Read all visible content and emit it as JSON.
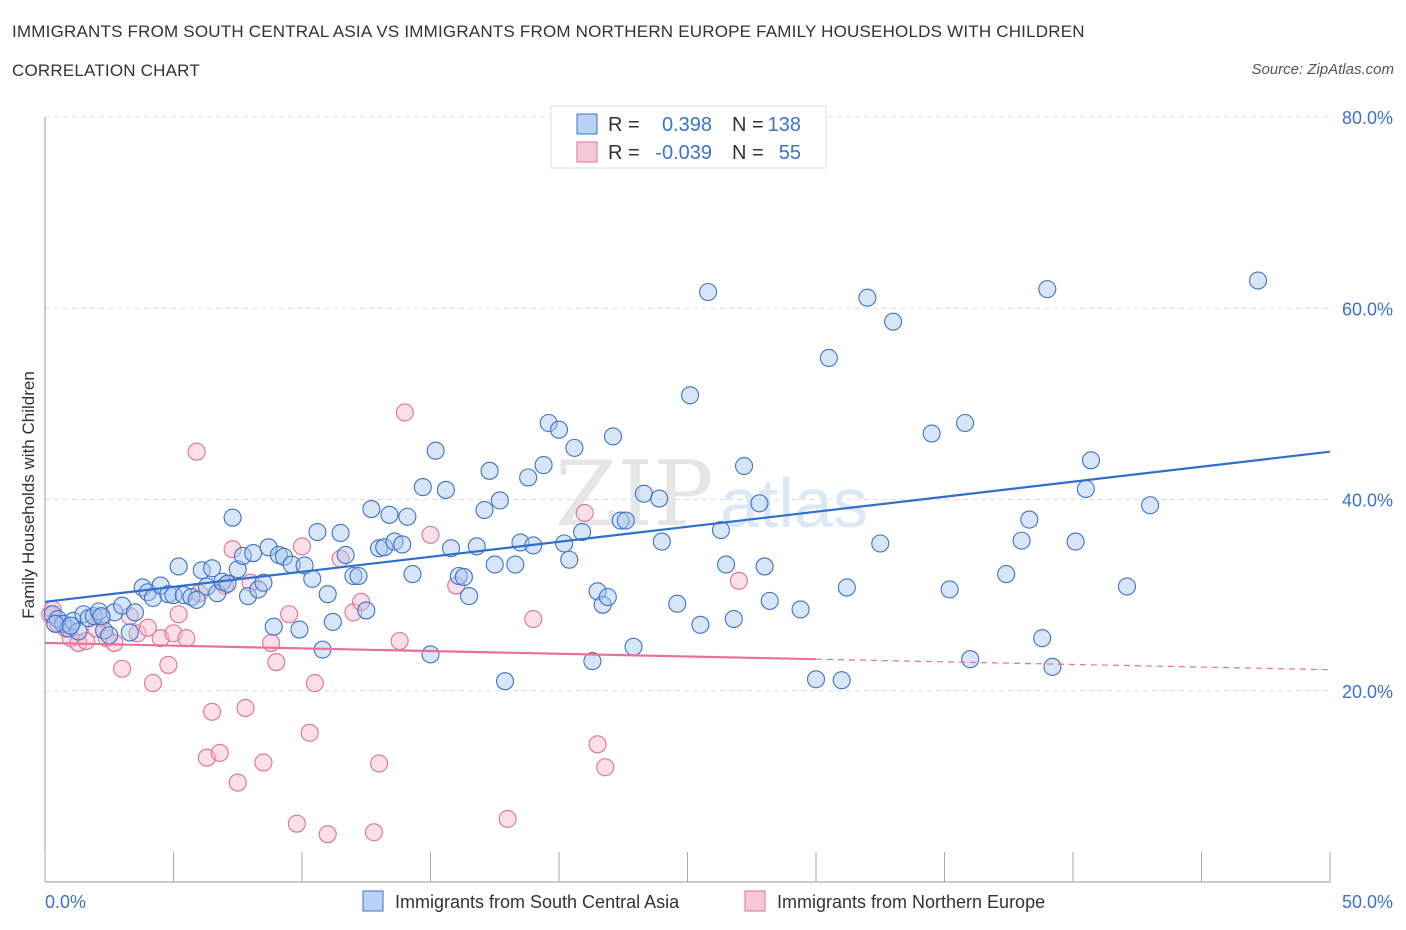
{
  "title": "IMMIGRANTS FROM SOUTH CENTRAL ASIA VS IMMIGRANTS FROM NORTHERN EUROPE FAMILY HOUSEHOLDS WITH CHILDREN",
  "subtitle": "CORRELATION CHART",
  "source": "Source: ZipAtlas.com",
  "watermark": {
    "zip": "ZIP",
    "atlas": "atlas"
  },
  "colors": {
    "blue": "#3b73c8",
    "blue_fill": "#a9c6ee",
    "blue_line": "#2f6fd0",
    "pink": "#e0709a",
    "pink_fill": "#f4b9cc",
    "pink_line": "#e8709a",
    "grid": "#dddddd",
    "axis_text": "#3b73c8"
  },
  "legend": {
    "rows": [
      {
        "r_label": "R =",
        "r_value": "0.398",
        "n_label": "N =",
        "n_value": "138",
        "series": "blue"
      },
      {
        "r_label": "R =",
        "r_value": "-0.039",
        "n_label": "N =",
        "n_value": "55",
        "series": "pink"
      }
    ]
  },
  "chart_data": {
    "type": "scatter",
    "title": "IMMIGRANTS FROM SOUTH CENTRAL ASIA VS IMMIGRANTS FROM NORTHERN EUROPE FAMILY HOUSEHOLDS WITH CHILDREN",
    "subtitle": "CORRELATION CHART",
    "xlabel": "",
    "ylabel": "Family Households with Children",
    "xlim": [
      0,
      50
    ],
    "ylim": [
      0,
      80
    ],
    "x_tick_labels": [
      "0.0%",
      "50.0%"
    ],
    "y_ticks": [
      20,
      40,
      60,
      80
    ],
    "y_tick_labels": [
      "20.0%",
      "40.0%",
      "60.0%",
      "80.0%"
    ],
    "grid": true,
    "legend_position": "top-center and bottom",
    "series": [
      {
        "name": "Immigrants from South Central Asia",
        "color": "blue",
        "trend": {
          "x": [
            0,
            50
          ],
          "y": [
            29.3,
            45.0
          ]
        },
        "points": [
          [
            0.3,
            28.0
          ],
          [
            0.5,
            27.5
          ],
          [
            0.7,
            27.0
          ],
          [
            0.9,
            26.5
          ],
          [
            1.1,
            27.3
          ],
          [
            1.3,
            26.2
          ],
          [
            1.5,
            28.0
          ],
          [
            1.7,
            27.6
          ],
          [
            1.9,
            27.8
          ],
          [
            2.1,
            28.3
          ],
          [
            2.3,
            26.3
          ],
          [
            2.5,
            25.8
          ],
          [
            2.7,
            28.2
          ],
          [
            3.0,
            28.9
          ],
          [
            3.3,
            26.1
          ],
          [
            3.5,
            28.2
          ],
          [
            3.8,
            30.8
          ],
          [
            4.0,
            30.3
          ],
          [
            4.2,
            29.7
          ],
          [
            4.5,
            31.0
          ],
          [
            4.8,
            30.1
          ],
          [
            5.0,
            30.0
          ],
          [
            5.2,
            33.0
          ],
          [
            5.4,
            30.0
          ],
          [
            5.7,
            29.8
          ],
          [
            5.9,
            29.5
          ],
          [
            6.1,
            32.6
          ],
          [
            6.3,
            30.9
          ],
          [
            6.5,
            32.8
          ],
          [
            6.7,
            30.2
          ],
          [
            6.9,
            31.4
          ],
          [
            7.1,
            31.2
          ],
          [
            7.3,
            38.1
          ],
          [
            7.5,
            32.7
          ],
          [
            7.7,
            34.1
          ],
          [
            7.9,
            29.9
          ],
          [
            8.1,
            34.4
          ],
          [
            8.3,
            30.6
          ],
          [
            8.5,
            31.3
          ],
          [
            8.7,
            35.0
          ],
          [
            8.9,
            26.7
          ],
          [
            9.1,
            34.2
          ],
          [
            9.3,
            34.0
          ],
          [
            9.6,
            33.2
          ],
          [
            9.9,
            26.4
          ],
          [
            10.1,
            33.1
          ],
          [
            10.4,
            31.7
          ],
          [
            10.6,
            36.6
          ],
          [
            10.8,
            24.3
          ],
          [
            11.0,
            30.1
          ],
          [
            11.2,
            27.2
          ],
          [
            11.5,
            36.5
          ],
          [
            11.7,
            34.2
          ],
          [
            12.0,
            32.0
          ],
          [
            12.2,
            32.0
          ],
          [
            12.5,
            28.4
          ],
          [
            12.7,
            39.0
          ],
          [
            13.0,
            34.9
          ],
          [
            13.2,
            35.0
          ],
          [
            13.4,
            38.4
          ],
          [
            13.6,
            35.6
          ],
          [
            13.9,
            35.3
          ],
          [
            14.1,
            38.2
          ],
          [
            14.3,
            32.2
          ],
          [
            14.7,
            41.3
          ],
          [
            15.0,
            23.8
          ],
          [
            15.2,
            45.1
          ],
          [
            15.6,
            41.0
          ],
          [
            15.8,
            34.9
          ],
          [
            16.1,
            32.0
          ],
          [
            16.3,
            31.9
          ],
          [
            16.5,
            29.9
          ],
          [
            16.8,
            35.1
          ],
          [
            17.1,
            38.9
          ],
          [
            17.3,
            43.0
          ],
          [
            17.5,
            33.2
          ],
          [
            17.7,
            39.9
          ],
          [
            17.9,
            21.0
          ],
          [
            18.3,
            33.2
          ],
          [
            18.5,
            35.5
          ],
          [
            18.8,
            42.3
          ],
          [
            19.0,
            35.2
          ],
          [
            19.4,
            43.6
          ],
          [
            19.6,
            48.0
          ],
          [
            20.0,
            47.3
          ],
          [
            20.2,
            35.4
          ],
          [
            20.4,
            33.7
          ],
          [
            20.6,
            45.4
          ],
          [
            20.9,
            36.6
          ],
          [
            21.3,
            23.1
          ],
          [
            21.5,
            30.4
          ],
          [
            21.7,
            29.0
          ],
          [
            21.9,
            29.8
          ],
          [
            22.1,
            46.6
          ],
          [
            22.4,
            37.8
          ],
          [
            22.6,
            37.8
          ],
          [
            22.9,
            24.6
          ],
          [
            23.3,
            40.6
          ],
          [
            23.9,
            40.1
          ],
          [
            24.0,
            35.6
          ],
          [
            24.6,
            29.1
          ],
          [
            25.1,
            50.9
          ],
          [
            25.5,
            26.9
          ],
          [
            25.8,
            61.7
          ],
          [
            26.3,
            36.8
          ],
          [
            26.5,
            33.2
          ],
          [
            26.8,
            27.5
          ],
          [
            27.2,
            43.5
          ],
          [
            27.8,
            39.6
          ],
          [
            28.0,
            33.0
          ],
          [
            28.2,
            29.4
          ],
          [
            29.4,
            28.5
          ],
          [
            30.0,
            21.2
          ],
          [
            30.5,
            54.8
          ],
          [
            31.0,
            21.1
          ],
          [
            31.2,
            30.8
          ],
          [
            32.0,
            61.1
          ],
          [
            32.5,
            35.4
          ],
          [
            33.0,
            58.6
          ],
          [
            34.5,
            46.9
          ],
          [
            35.2,
            30.6
          ],
          [
            35.8,
            48.0
          ],
          [
            36.0,
            23.3
          ],
          [
            37.4,
            32.2
          ],
          [
            38.0,
            35.7
          ],
          [
            38.3,
            37.9
          ],
          [
            38.8,
            25.5
          ],
          [
            39.0,
            62.0
          ],
          [
            39.2,
            22.5
          ],
          [
            40.1,
            35.6
          ],
          [
            40.5,
            41.1
          ],
          [
            40.7,
            44.1
          ],
          [
            42.1,
            30.9
          ],
          [
            43.0,
            39.4
          ],
          [
            47.2,
            62.9
          ],
          [
            0.4,
            27.0
          ],
          [
            1.0,
            26.8
          ],
          [
            2.2,
            27.8
          ]
        ]
      },
      {
        "name": "Immigrants from Northern Europe",
        "color": "pink",
        "trend": {
          "x": [
            0,
            30
          ],
          "y": [
            25.0,
            23.3
          ]
        },
        "trend_dashed": {
          "x": [
            30,
            50
          ],
          "y": [
            23.3,
            22.2
          ]
        },
        "points": [
          [
            0.2,
            28.0
          ],
          [
            0.5,
            27.0
          ],
          [
            0.8,
            26.5
          ],
          [
            1.0,
            25.5
          ],
          [
            1.3,
            25.0
          ],
          [
            1.6,
            25.2
          ],
          [
            2.0,
            26.5
          ],
          [
            2.2,
            27.6
          ],
          [
            2.4,
            25.5
          ],
          [
            2.7,
            25.0
          ],
          [
            3.0,
            22.3
          ],
          [
            3.3,
            27.8
          ],
          [
            3.6,
            26.0
          ],
          [
            4.0,
            26.6
          ],
          [
            4.2,
            20.8
          ],
          [
            4.5,
            25.5
          ],
          [
            4.8,
            22.7
          ],
          [
            5.0,
            26.0
          ],
          [
            5.2,
            28.0
          ],
          [
            5.5,
            25.5
          ],
          [
            5.9,
            45.0
          ],
          [
            6.0,
            30.2
          ],
          [
            6.3,
            13.0
          ],
          [
            6.5,
            17.8
          ],
          [
            6.8,
            13.5
          ],
          [
            7.0,
            31.0
          ],
          [
            7.3,
            34.8
          ],
          [
            7.5,
            10.4
          ],
          [
            7.8,
            18.2
          ],
          [
            8.0,
            31.3
          ],
          [
            8.5,
            12.5
          ],
          [
            8.8,
            25.0
          ],
          [
            9.0,
            23.0
          ],
          [
            9.5,
            28.0
          ],
          [
            9.8,
            6.1
          ],
          [
            10.0,
            35.1
          ],
          [
            10.3,
            15.6
          ],
          [
            10.5,
            20.8
          ],
          [
            11.0,
            5.0
          ],
          [
            11.5,
            33.8
          ],
          [
            12.0,
            28.2
          ],
          [
            12.3,
            29.3
          ],
          [
            12.8,
            5.2
          ],
          [
            13.0,
            12.4
          ],
          [
            13.8,
            25.2
          ],
          [
            14.0,
            49.1
          ],
          [
            15.0,
            36.3
          ],
          [
            16.0,
            31.0
          ],
          [
            18.0,
            6.6
          ],
          [
            19.0,
            27.5
          ],
          [
            21.0,
            38.6
          ],
          [
            21.5,
            14.4
          ],
          [
            21.8,
            12.0
          ],
          [
            27.0,
            31.5
          ],
          [
            0.3,
            28.5
          ]
        ]
      }
    ]
  },
  "bottom_legend": {
    "items": [
      {
        "label": "Immigrants from South Central Asia",
        "color": "blue"
      },
      {
        "label": "Immigrants from Northern Europe",
        "color": "pink"
      }
    ]
  },
  "axis": {
    "x_left_label": "0.0%",
    "x_right_label": "50.0%",
    "ylabel": "Family Households with Children"
  }
}
